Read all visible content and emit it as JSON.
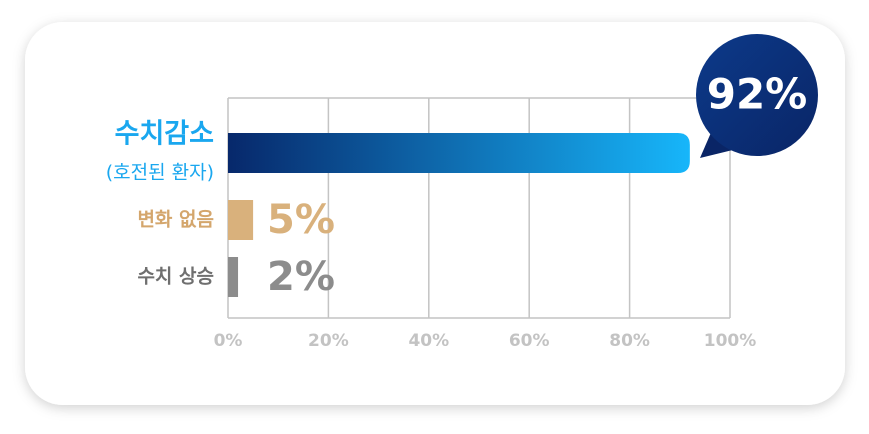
{
  "chart_data": {
    "type": "bar",
    "orientation": "horizontal",
    "categories": [
      "수치감소",
      "변화 없음",
      "수치 상승"
    ],
    "category_sublabels": [
      "(호전된 환자)",
      null,
      null
    ],
    "values": [
      92,
      5,
      2
    ],
    "value_labels": [
      "92%",
      "5%",
      "2%"
    ],
    "colors": [
      [
        "#07286b",
        "#17b6fa"
      ],
      "#d9b17c",
      "#8c8c8c"
    ],
    "label_colors": [
      "#1aa7ef",
      "#d4a66c",
      "#6f6f6f"
    ],
    "xlim": [
      0,
      100
    ],
    "xticks": [
      {
        "value": 0,
        "label": "0%"
      },
      {
        "value": 20,
        "label": "20%"
      },
      {
        "value": 40,
        "label": "40%"
      },
      {
        "value": 60,
        "label": "60%"
      },
      {
        "value": 80,
        "label": "80%"
      },
      {
        "value": 100,
        "label": "100%"
      }
    ],
    "grid": true
  }
}
